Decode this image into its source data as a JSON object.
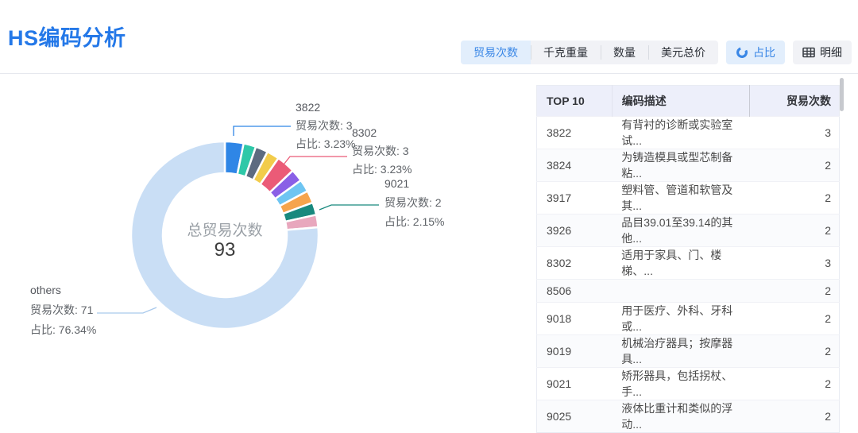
{
  "page": {
    "title": "HS编码分析"
  },
  "toolbar": {
    "metric_tabs": [
      {
        "name": "trade-count",
        "label": "贸易次数",
        "active": true
      },
      {
        "name": "kg-weight",
        "label": "千克重量",
        "active": false
      },
      {
        "name": "quantity",
        "label": "数量",
        "active": false
      },
      {
        "name": "usd-total",
        "label": "美元总价",
        "active": false
      }
    ],
    "view_toggles": {
      "ratio": {
        "label": "占比",
        "icon": "donut-chart-icon",
        "active": true
      },
      "detail": {
        "label": "明细",
        "icon": "table-grid-icon",
        "active": false
      }
    }
  },
  "colors": {
    "accent": "#3a87e6",
    "title": "#2478e8",
    "others_leader": "#a9c9ec",
    "table_header_bg": "#edeffa"
  },
  "chart_data": {
    "type": "pie",
    "title": "HS编码分析",
    "center_label": "总贸易次数",
    "center_value": "93",
    "total": 93,
    "legend_position": "none",
    "slices": [
      {
        "label": "3822",
        "value": 3,
        "percent": "3.23%",
        "color": "#2f86e6"
      },
      {
        "label": "3824",
        "value": 2,
        "percent": "2.15%",
        "color": "#2ec8a8"
      },
      {
        "label": "3917",
        "value": 2,
        "percent": "2.15%",
        "color": "#5d6b80"
      },
      {
        "label": "3926",
        "value": 2,
        "percent": "2.15%",
        "color": "#f2cc4b"
      },
      {
        "label": "8302",
        "value": 3,
        "percent": "3.23%",
        "color": "#eb5b77"
      },
      {
        "label": "8506",
        "value": 2,
        "percent": "2.15%",
        "color": "#8a5fe6"
      },
      {
        "label": "9018",
        "value": 2,
        "percent": "2.15%",
        "color": "#6ec5f2"
      },
      {
        "label": "9019",
        "value": 2,
        "percent": "2.15%",
        "color": "#f6a44c"
      },
      {
        "label": "9021",
        "value": 2,
        "percent": "2.15%",
        "color": "#18897e"
      },
      {
        "label": "9025",
        "value": 2,
        "percent": "2.15%",
        "color": "#e8a7bd"
      },
      {
        "label": "others",
        "value": 71,
        "percent": "76.34%",
        "color": "#c9def5"
      }
    ],
    "callouts": [
      {
        "code": "3822",
        "count_label": "贸易次数: 3",
        "percent_label": "占比: 3.23%"
      },
      {
        "code": "8302",
        "count_label": "贸易次数: 3",
        "percent_label": "占比: 3.23%"
      },
      {
        "code": "9021",
        "count_label": "贸易次数: 2",
        "percent_label": "占比: 2.15%"
      },
      {
        "code": "others",
        "count_label": "贸易次数: 71",
        "percent_label": "占比: 76.34%"
      }
    ]
  },
  "table": {
    "columns": [
      "TOP 10",
      "编码描述",
      "贸易次数"
    ],
    "rows": [
      {
        "code": "3822",
        "description": "有背衬的诊断或实验室试...",
        "count": "3"
      },
      {
        "code": "3824",
        "description": "为铸造模具或型芯制备粘...",
        "count": "2"
      },
      {
        "code": "3917",
        "description": "塑料管、管道和软管及其...",
        "count": "2"
      },
      {
        "code": "3926",
        "description": "品目39.01至39.14的其他...",
        "count": "2"
      },
      {
        "code": "8302",
        "description": "适用于家具、门、楼梯、...",
        "count": "3"
      },
      {
        "code": "8506",
        "description": "",
        "count": "2"
      },
      {
        "code": "9018",
        "description": "用于医疗、外科、牙科或...",
        "count": "2"
      },
      {
        "code": "9019",
        "description": "机械治疗器具；按摩器具...",
        "count": "2"
      },
      {
        "code": "9021",
        "description": "矫形器具，包括拐杖、手...",
        "count": "2"
      },
      {
        "code": "9025",
        "description": "液体比重计和类似的浮动...",
        "count": "2"
      }
    ]
  }
}
